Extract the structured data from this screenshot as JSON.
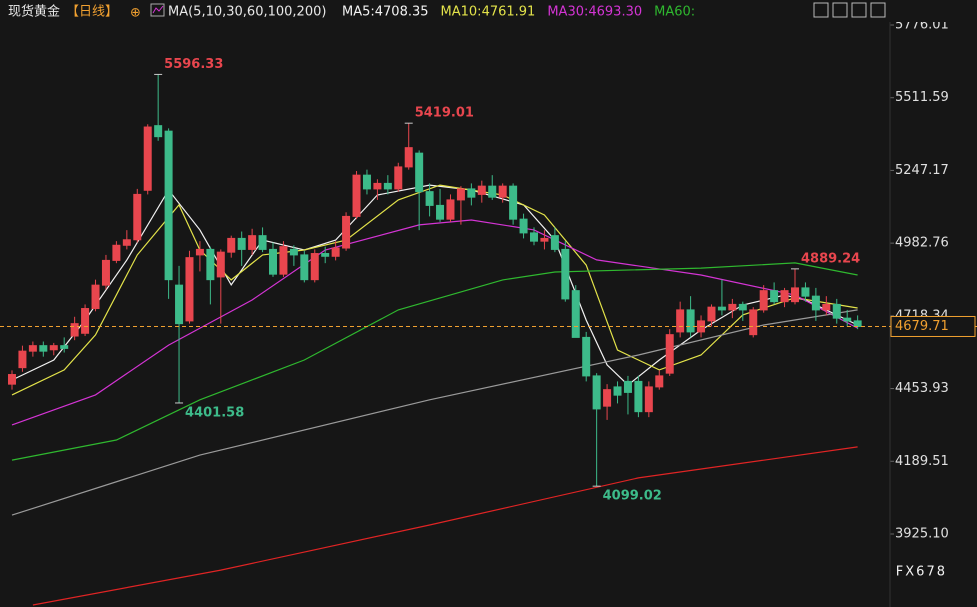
{
  "chart_data": {
    "type": "candlestick",
    "title": "现货黄金",
    "period": "【日线】",
    "ma_label": "MA(5,10,30,60,100,200)",
    "watermark": "FX678",
    "up_color": "#e8464e",
    "down_color": "#3dbb8a",
    "ylim": [
      3659.65,
      5866.92
    ],
    "yticks": [
      5776.01,
      5511.59,
      5247.17,
      4982.76,
      4718.34,
      4453.93,
      4189.51,
      {
        "value": 3925.1,
        "label": "3925.10"
      }
    ],
    "open": [
      4470,
      4530,
      4590,
      4610,
      4595,
      4610,
      4645,
      4655,
      4745,
      4830,
      4920,
      4975,
      4995,
      5175,
      5410,
      5390,
      4830,
      4700,
      4940,
      4960,
      4860,
      4950,
      5000,
      4960,
      5010,
      4960,
      4870,
      4960,
      4940,
      4850,
      4945,
      4935,
      4965,
      5080,
      5230,
      5180,
      5200,
      5180,
      5260,
      5310,
      5170,
      5120,
      5070,
      5140,
      5180,
      5160,
      5190,
      5150,
      5190,
      5070,
      5020,
      4990,
      5010,
      4960,
      4810,
      4640,
      4500,
      4390,
      4460,
      4480,
      4480,
      4370,
      4460,
      4510,
      4660,
      4740,
      4660,
      4700,
      4750,
      4740,
      4760,
      4650,
      4740,
      4810,
      4770,
      4770,
      4820,
      4790,
      4740,
      4760,
      4710,
      4700
    ],
    "high": [
      4520,
      4610,
      4625,
      4625,
      4620,
      4640,
      4715,
      4760,
      4850,
      4940,
      4990,
      5030,
      5180,
      5415,
      5596.33,
      5400,
      4900,
      4955,
      4990,
      4970,
      4960,
      5010,
      5025,
      5035,
      5040,
      4985,
      4990,
      4975,
      4955,
      4960,
      4970,
      4990,
      5095,
      5245,
      5250,
      5215,
      5230,
      5275,
      5419.01,
      5320,
      5200,
      5180,
      5160,
      5190,
      5200,
      5210,
      5230,
      5200,
      5200,
      5090,
      5040,
      5030,
      5040,
      4990,
      4830,
      4660,
      4510,
      4470,
      4480,
      4500,
      4500,
      4480,
      4520,
      4670,
      4770,
      4790,
      4720,
      4760,
      4850,
      4780,
      4770,
      4750,
      4830,
      4840,
      4820,
      4889.24,
      4840,
      4820,
      4790,
      4780,
      4740,
      4720
    ],
    "low": [
      4450,
      4515,
      4570,
      4570,
      4575,
      4585,
      4630,
      4645,
      4735,
      4815,
      4910,
      4960,
      4985,
      5160,
      5355,
      4780,
      4401.58,
      4690,
      4880,
      4760,
      4690,
      4930,
      4900,
      4940,
      4950,
      4860,
      4860,
      4900,
      4840,
      4840,
      4910,
      4920,
      4955,
      5070,
      5160,
      5140,
      5160,
      5170,
      5250,
      5030,
      5080,
      5060,
      5060,
      5050,
      5120,
      5130,
      5140,
      5130,
      5050,
      5000,
      4975,
      4960,
      4950,
      4770,
      4640,
      4480,
      4099.02,
      4340,
      4400,
      4360,
      4350,
      4350,
      4450,
      4500,
      4640,
      4640,
      4640,
      4680,
      4720,
      4710,
      4700,
      4640,
      4730,
      4760,
      4750,
      4760,
      4770,
      4700,
      4720,
      4690,
      4680,
      4670
    ],
    "close": [
      4505,
      4590,
      4610,
      4590,
      4610,
      4600,
      4690,
      4745,
      4830,
      4920,
      4975,
      4995,
      5160,
      5405,
      5370,
      4850,
      4690,
      4930,
      4960,
      4850,
      4950,
      5000,
      4960,
      5010,
      4960,
      4870,
      4970,
      4940,
      4850,
      4945,
      4935,
      4965,
      5080,
      5230,
      5180,
      5200,
      5180,
      5260,
      5330,
      5170,
      5120,
      5070,
      5140,
      5180,
      5150,
      5190,
      5150,
      5190,
      5070,
      5020,
      4990,
      5000,
      4960,
      4780,
      4640,
      4500,
      4380,
      4450,
      4430,
      4440,
      4370,
      4460,
      4500,
      4650,
      4740,
      4660,
      4700,
      4750,
      4740,
      4760,
      4740,
      4740,
      4810,
      4770,
      4810,
      4820,
      4790,
      4740,
      4760,
      4710,
      4700,
      4679.71
    ],
    "series": [
      {
        "name": "MA5:4708.35",
        "color": "#f2f2f2",
        "x": [
          0,
          4,
          7,
          11,
          15,
          18,
          21,
          24,
          28,
          31,
          35,
          40,
          44,
          49,
          52,
          55,
          57,
          59,
          62,
          66,
          70,
          74,
          76,
          81
        ],
        "values": [
          4485,
          4558,
          4703,
          4921,
          5176,
          5031,
          4831,
          4994,
          4958,
          4994,
          5158,
          5194,
          5176,
          5122,
          4994,
          4703,
          4540,
          4467,
          4558,
          4667,
          4758,
          4794,
          4776,
          4685
        ]
      },
      {
        "name": "MA10:4761.91",
        "color": "#e3e34a",
        "x": [
          0,
          5,
          8,
          12,
          16,
          18,
          21,
          24,
          28,
          32,
          37,
          41,
          47,
          51,
          55,
          58,
          62,
          66,
          70,
          75,
          81
        ],
        "values": [
          4431,
          4522,
          4649,
          4940,
          5122,
          4958,
          4849,
          4940,
          4958,
          4994,
          5140,
          5194,
          5158,
          5085,
          4903,
          4594,
          4522,
          4576,
          4722,
          4784,
          4747
        ]
      },
      {
        "name": "MA30:4693.30",
        "color": "#d434d4",
        "x": [
          0,
          8,
          15,
          23,
          30,
          39,
          44,
          50,
          56,
          66,
          75,
          81
        ],
        "values": [
          4322,
          4431,
          4612,
          4776,
          4958,
          5049,
          5067,
          5031,
          4922,
          4867,
          4794,
          4674
        ]
      },
      {
        "name": "MA60:",
        "color": "#2fb82f",
        "x": [
          0,
          10,
          18,
          28,
          37,
          47,
          52,
          66,
          75,
          81
        ],
        "values": [
          4194,
          4267,
          4413,
          4558,
          4740,
          4849,
          4878,
          4892,
          4911,
          4867
        ]
      },
      {
        "color": "#9a9a9a",
        "x": [
          0,
          18,
          40,
          60,
          72,
          81
        ],
        "values": [
          3994,
          4212,
          4413,
          4576,
          4685,
          4740
        ]
      },
      {
        "color": "#e02424",
        "x": [
          2,
          20,
          40,
          60,
          81
        ],
        "values": [
          3667,
          3794,
          3958,
          4129,
          4242
        ]
      }
    ]
  }
}
